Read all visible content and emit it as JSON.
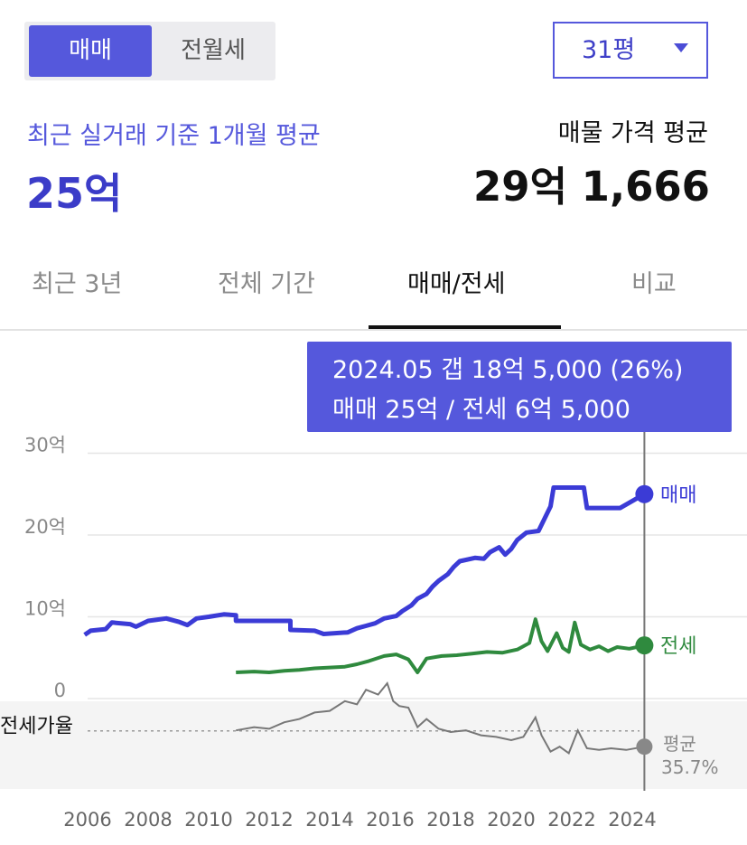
{
  "toggle": {
    "sale_label": "매매",
    "rent_label": "전월세"
  },
  "area_select": {
    "value": "31평"
  },
  "summary": {
    "recent_label": "최근 실거래 기준 1개월 평균",
    "recent_value": "25억",
    "listing_label": "매물 가격 평균",
    "listing_value": "29억 1,666"
  },
  "tabs": [
    {
      "label": "최근 3년"
    },
    {
      "label": "전체 기간"
    },
    {
      "label": "매매/전세"
    },
    {
      "label": "비교"
    }
  ],
  "tooltip": {
    "line1": "2024.05  갭 18억 5,000 (26%)",
    "line2": "매매 25억 / 전세 6억 5,000"
  },
  "colors": {
    "accent": "#5558dc",
    "sale": "#3b3bd6",
    "jeonse": "#2f8a3e",
    "ratio": "#777777"
  },
  "chart_data": {
    "type": "line",
    "y_unit": "억",
    "ylim": [
      0,
      30
    ],
    "y_ticks": [
      "0",
      "10억",
      "20억",
      "30억"
    ],
    "x_ticks": [
      "2006",
      "2008",
      "2010",
      "2012",
      "2014",
      "2016",
      "2018",
      "2020",
      "2022",
      "2024"
    ],
    "grid": true,
    "series": [
      {
        "name": "매매",
        "points": [
          [
            2005.9,
            7.8
          ],
          [
            2006.1,
            8.3
          ],
          [
            2006.6,
            8.5
          ],
          [
            2006.8,
            9.3
          ],
          [
            2007.4,
            9.1
          ],
          [
            2007.6,
            8.8
          ],
          [
            2008.0,
            9.5
          ],
          [
            2008.6,
            9.8
          ],
          [
            2009.0,
            9.4
          ],
          [
            2009.3,
            9.0
          ],
          [
            2009.6,
            9.8
          ],
          [
            2010.0,
            10.0
          ],
          [
            2010.5,
            10.3
          ],
          [
            2010.9,
            10.2
          ],
          [
            2010.9,
            9.5
          ],
          [
            2012.7,
            9.5
          ],
          [
            2012.7,
            8.4
          ],
          [
            2013.5,
            8.3
          ],
          [
            2013.8,
            7.9
          ],
          [
            2014.6,
            8.1
          ],
          [
            2014.9,
            8.6
          ],
          [
            2015.2,
            8.9
          ],
          [
            2015.5,
            9.2
          ],
          [
            2015.8,
            9.8
          ],
          [
            2016.2,
            10.1
          ],
          [
            2016.4,
            10.7
          ],
          [
            2016.7,
            11.4
          ],
          [
            2016.9,
            12.2
          ],
          [
            2017.2,
            12.8
          ],
          [
            2017.4,
            13.7
          ],
          [
            2017.6,
            14.4
          ],
          [
            2017.9,
            15.2
          ],
          [
            2018.1,
            16.1
          ],
          [
            2018.3,
            16.8
          ],
          [
            2018.8,
            17.2
          ],
          [
            2019.1,
            17.1
          ],
          [
            2019.3,
            17.9
          ],
          [
            2019.6,
            18.5
          ],
          [
            2019.8,
            17.6
          ],
          [
            2020.0,
            18.3
          ],
          [
            2020.2,
            19.4
          ],
          [
            2020.5,
            20.3
          ],
          [
            2020.9,
            20.5
          ],
          [
            2021.3,
            23.5
          ],
          [
            2021.4,
            25.8
          ],
          [
            2022.4,
            25.8
          ],
          [
            2022.5,
            23.3
          ],
          [
            2023.6,
            23.3
          ],
          [
            2024.4,
            25.0
          ]
        ],
        "end_label": "매매"
      },
      {
        "name": "전세",
        "points": [
          [
            2010.9,
            3.2
          ],
          [
            2011.5,
            3.3
          ],
          [
            2012.0,
            3.2
          ],
          [
            2012.5,
            3.4
          ],
          [
            2013.0,
            3.5
          ],
          [
            2013.5,
            3.7
          ],
          [
            2014.0,
            3.8
          ],
          [
            2014.5,
            3.9
          ],
          [
            2014.9,
            4.2
          ],
          [
            2015.3,
            4.6
          ],
          [
            2015.8,
            5.2
          ],
          [
            2016.2,
            5.4
          ],
          [
            2016.6,
            4.8
          ],
          [
            2016.9,
            3.2
          ],
          [
            2017.2,
            4.9
          ],
          [
            2017.7,
            5.2
          ],
          [
            2018.2,
            5.3
          ],
          [
            2018.7,
            5.5
          ],
          [
            2019.2,
            5.7
          ],
          [
            2019.7,
            5.6
          ],
          [
            2020.2,
            6.0
          ],
          [
            2020.6,
            6.8
          ],
          [
            2020.8,
            9.7
          ],
          [
            2021.0,
            7.0
          ],
          [
            2021.2,
            5.8
          ],
          [
            2021.5,
            8.0
          ],
          [
            2021.7,
            6.2
          ],
          [
            2021.9,
            5.7
          ],
          [
            2022.1,
            9.3
          ],
          [
            2022.3,
            6.6
          ],
          [
            2022.6,
            6.0
          ],
          [
            2022.9,
            6.4
          ],
          [
            2023.2,
            5.8
          ],
          [
            2023.5,
            6.3
          ],
          [
            2023.9,
            6.1
          ],
          [
            2024.4,
            6.5
          ]
        ],
        "end_label": "전세"
      },
      {
        "name": "전세가율",
        "unit": "%",
        "ylim": [
          0,
          100
        ],
        "points": [
          [
            2010.9,
            36
          ],
          [
            2011.5,
            38
          ],
          [
            2012.0,
            37
          ],
          [
            2012.5,
            41
          ],
          [
            2013.0,
            43
          ],
          [
            2013.5,
            47
          ],
          [
            2014.0,
            48
          ],
          [
            2014.5,
            54
          ],
          [
            2014.9,
            52
          ],
          [
            2015.2,
            61
          ],
          [
            2015.6,
            58
          ],
          [
            2015.9,
            65
          ],
          [
            2016.1,
            54
          ],
          [
            2016.3,
            51
          ],
          [
            2016.6,
            50
          ],
          [
            2016.9,
            38
          ],
          [
            2017.2,
            43
          ],
          [
            2017.6,
            37
          ],
          [
            2018.0,
            35
          ],
          [
            2018.5,
            36
          ],
          [
            2019.0,
            33
          ],
          [
            2019.5,
            32
          ],
          [
            2020.0,
            30
          ],
          [
            2020.4,
            32
          ],
          [
            2020.8,
            44
          ],
          [
            2021.0,
            33
          ],
          [
            2021.3,
            23
          ],
          [
            2021.6,
            26
          ],
          [
            2021.9,
            22
          ],
          [
            2022.2,
            36
          ],
          [
            2022.5,
            25
          ],
          [
            2022.9,
            24
          ],
          [
            2023.3,
            25
          ],
          [
            2023.8,
            24
          ],
          [
            2024.4,
            26
          ]
        ],
        "label": "전세가율",
        "avg_label": "평균",
        "avg_value": "35.7%",
        "avg": 35.7
      }
    ],
    "highlight": {
      "date": "2024.05",
      "x": 2024.4
    }
  }
}
